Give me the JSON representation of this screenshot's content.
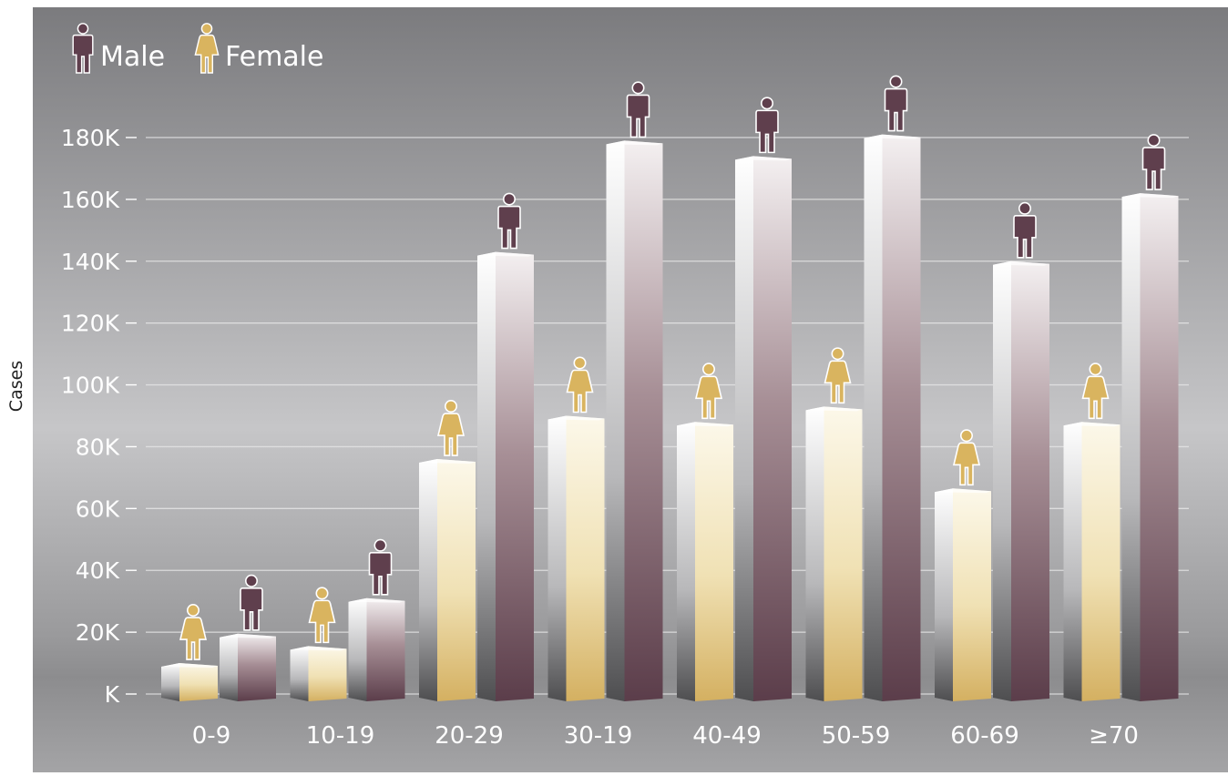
{
  "chart_data": {
    "type": "bar",
    "title": "",
    "xlabel": "",
    "ylabel": "Cases",
    "categories": [
      "0-9",
      "10-19",
      "20-29",
      "30-19",
      "40-49",
      "50-59",
      "60-69",
      "≥70"
    ],
    "series": [
      {
        "name": "Female",
        "values": [
          10000,
          15500,
          76000,
          90000,
          88000,
          93000,
          66500,
          88000
        ]
      },
      {
        "name": "Male",
        "values": [
          19500,
          31000,
          143000,
          179000,
          174000,
          181000,
          140000,
          162000
        ]
      }
    ],
    "yticks": [
      "K",
      "20K",
      "40K",
      "60K",
      "80K",
      "100K",
      "120K",
      "140K",
      "160K",
      "180K"
    ],
    "ytick_values": [
      0,
      20000,
      40000,
      60000,
      80000,
      100000,
      120000,
      140000,
      160000,
      180000
    ],
    "ylim": [
      0,
      180000
    ],
    "grid": true,
    "legend_position": "top-left",
    "colors": {
      "female": "#d9b45f",
      "female_light": "#fbf6e6",
      "male": "#5f3f4d",
      "male_light": "#f2eeee",
      "background_top": "#7d7d80",
      "background_bottom": "#e9e9e9"
    },
    "icons": {
      "male": "male-figure-icon",
      "female": "female-figure-icon"
    }
  }
}
